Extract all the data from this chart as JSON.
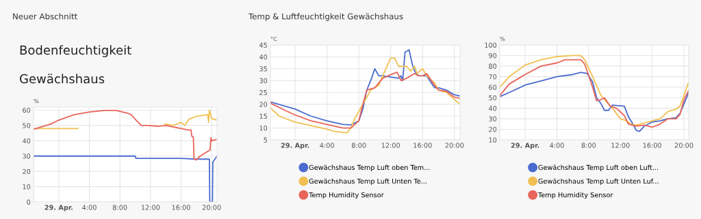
{
  "chart_data": [
    {
      "type": "line",
      "title": "Bodenfeuchtigkeit",
      "subtitle": "Gewächshaus",
      "ylabel": "%",
      "annotations": [
        "Neuer Abschnitt"
      ],
      "xlim": [
        -3.3,
        20.7
      ],
      "xticks": [
        {
          "value": 0,
          "label": "29. Apr."
        },
        {
          "value": 4,
          "label": "4:00"
        },
        {
          "value": 8,
          "label": "8:00"
        },
        {
          "value": 12,
          "label": "12:00"
        },
        {
          "value": 16,
          "label": "16:00"
        },
        {
          "value": 20,
          "label": "20:00"
        }
      ],
      "ylim": [
        0,
        62
      ],
      "yticks": [
        0,
        10,
        20,
        30,
        40,
        50,
        60
      ],
      "grid": true,
      "legend": false,
      "marker": "none",
      "line_style": "solid",
      "series": [
        {
          "color": "#4a6bd0",
          "x": [
            -3.3,
            10,
            10.1,
            16,
            18,
            19.7,
            19.75,
            20.1,
            20.15,
            20.7
          ],
          "values": [
            30,
            30,
            28.5,
            28.5,
            28,
            28,
            0,
            0,
            26,
            30
          ]
        },
        {
          "color": "#f0c050",
          "x": [
            -3.3,
            2.5,
            8,
            13.9,
            15,
            16,
            16.5,
            17,
            18,
            19.5,
            19.6,
            19.7,
            20,
            20.7
          ],
          "values": [
            48,
            48,
            null,
            51,
            50,
            52,
            50,
            54,
            56,
            57,
            52,
            60,
            54.5,
            53.5
          ]
        },
        {
          "color": "#e8645a",
          "x": [
            -3.3,
            -1,
            0,
            2,
            4,
            6,
            7.5,
            9,
            9.5,
            10,
            10.8,
            11.5,
            13,
            14,
            15,
            16,
            17,
            17.3,
            17.4,
            17.6,
            17.7,
            18,
            18.5,
            19.8,
            19.9,
            20,
            20.7
          ],
          "values": [
            47.5,
            51,
            53.5,
            57,
            58.8,
            59.8,
            59.8,
            58,
            57,
            54,
            50,
            50,
            49.5,
            50,
            49,
            48,
            47,
            47,
            43,
            42.5,
            28,
            27.5,
            30,
            34,
            42,
            40,
            41
          ]
        }
      ]
    },
    {
      "type": "line",
      "ylabel": "°C",
      "annotations": [
        "Temp & Luftfeuchtigkeit Gewächshaus"
      ],
      "xlim": [
        -3.1,
        20.7
      ],
      "xticks": [
        {
          "value": 0,
          "label": "29. Apr."
        },
        {
          "value": 4,
          "label": "4:00"
        },
        {
          "value": 8,
          "label": "8:00"
        },
        {
          "value": 12,
          "label": "12:00"
        },
        {
          "value": 16,
          "label": "16:00"
        },
        {
          "value": 20,
          "label": "20:00"
        }
      ],
      "ylim": [
        5,
        45
      ],
      "yticks": [
        5,
        10,
        15,
        20,
        25,
        30,
        35,
        40,
        45
      ],
      "grid": true,
      "legend": "bottom",
      "marker": "none",
      "line_style": "solid",
      "series": [
        {
          "name": "Gewächshaus Temp Luft oben Tem...",
          "color": "#4a6bd0",
          "x": [
            -3.1,
            0,
            2,
            4,
            6,
            7,
            8,
            8.5,
            9,
            9.6,
            10,
            10.5,
            11,
            12,
            13,
            13.3,
            13.5,
            13.8,
            14.3,
            14.7,
            15,
            15.5,
            16,
            16.5,
            17.5,
            18,
            19,
            20,
            20.7
          ],
          "values": [
            21,
            18,
            15,
            13,
            11.5,
            11.3,
            13,
            18,
            26,
            31,
            35,
            32,
            32,
            31.5,
            31,
            32,
            30,
            42,
            43,
            37,
            34,
            32,
            32,
            32,
            27,
            27,
            26,
            24,
            23.5
          ]
        },
        {
          "name": "Gewächshaus Temp Luft Unten Te...",
          "color": "#f0c050",
          "x": [
            -3.1,
            -2,
            0,
            2,
            4,
            5,
            6.5,
            7,
            7.5,
            8.5,
            9.5,
            10.5,
            11,
            12,
            12.5,
            13,
            14,
            14.5,
            15,
            15.3,
            16,
            16.5,
            17.5,
            18,
            19,
            20,
            20.7
          ],
          "values": [
            18.5,
            15,
            12.5,
            11,
            9.5,
            8.5,
            8,
            10,
            14,
            20,
            26,
            28,
            32,
            39.5,
            39.5,
            36,
            36,
            34,
            36,
            33,
            35,
            32,
            29,
            26,
            25,
            22,
            20
          ]
        },
        {
          "name": "Temp Humidity Sensor",
          "color": "#e8645a",
          "x": [
            -3.1,
            -1,
            0,
            2,
            4,
            6,
            7,
            8,
            8.5,
            9,
            10,
            11,
            12,
            12.8,
            13.3,
            14,
            15,
            15.5,
            16,
            16.5,
            17.5,
            18,
            19,
            20,
            20.7
          ],
          "values": [
            20.5,
            17,
            15.5,
            13,
            11.5,
            10,
            10,
            13,
            20,
            26,
            27,
            31,
            32.5,
            33.5,
            30,
            31,
            33,
            32,
            32,
            33,
            28,
            26,
            25.5,
            23,
            22.5
          ]
        }
      ]
    },
    {
      "type": "line",
      "ylabel": "%",
      "xlim": [
        -3.2,
        20.6
      ],
      "xticks": [
        {
          "value": 0,
          "label": "29. Apr."
        },
        {
          "value": 4,
          "label": "4:00"
        },
        {
          "value": 8,
          "label": "8:00"
        },
        {
          "value": 12,
          "label": "12:00"
        },
        {
          "value": 16,
          "label": "16:00"
        },
        {
          "value": 20,
          "label": "20:00"
        }
      ],
      "ylim": [
        10,
        100
      ],
      "yticks": [
        10,
        20,
        30,
        40,
        50,
        60,
        70,
        80,
        90,
        100
      ],
      "grid": true,
      "legend": "bottom",
      "marker": "none",
      "line_style": "solid",
      "series": [
        {
          "name": "Gewächshaus Temp Luft oben Luft...",
          "color": "#4a6bd0",
          "x": [
            -3.2,
            -2,
            0,
            2,
            4,
            6,
            7,
            7.8,
            8.5,
            9,
            9.5,
            10,
            10.5,
            11,
            12.5,
            13,
            13.5,
            14,
            14.4,
            15,
            16,
            17,
            18,
            19,
            19.5,
            20,
            20.6
          ],
          "values": [
            51,
            55,
            62,
            66,
            70,
            72,
            74,
            73,
            65,
            50,
            45,
            38,
            38,
            43,
            42,
            32,
            26,
            19,
            18,
            23,
            27,
            28,
            30,
            31,
            35,
            44,
            55
          ]
        },
        {
          "name": "Gewächshaus Temp Luft Unten Luf...",
          "color": "#f0c050",
          "x": [
            -3.2,
            -2,
            0,
            2,
            4,
            6,
            7,
            7.5,
            8.5,
            9.5,
            10,
            11,
            12,
            12.8,
            13.3,
            14,
            15,
            16,
            17,
            18,
            19,
            19.5,
            20,
            20.6
          ],
          "values": [
            60,
            70,
            81,
            86,
            89,
            90,
            90,
            86,
            70,
            53,
            48,
            40,
            30,
            28,
            25,
            24,
            26,
            28,
            30,
            37,
            39,
            42,
            52,
            65
          ]
        },
        {
          "name": "Temp Humidity Sensor",
          "color": "#e8645a",
          "x": [
            -3.2,
            -2,
            0,
            2,
            4,
            5,
            7,
            7.5,
            8.5,
            9,
            9.5,
            10,
            10.7,
            11.5,
            12.5,
            13,
            14,
            15,
            16,
            17,
            18,
            19,
            19.5,
            20,
            20.6
          ],
          "values": [
            52,
            63,
            72,
            80,
            83,
            86,
            86,
            82,
            60,
            47,
            48,
            50,
            42,
            40,
            33,
            25,
            23,
            24,
            22,
            25,
            30,
            30,
            34,
            48,
            57
          ]
        }
      ]
    }
  ]
}
